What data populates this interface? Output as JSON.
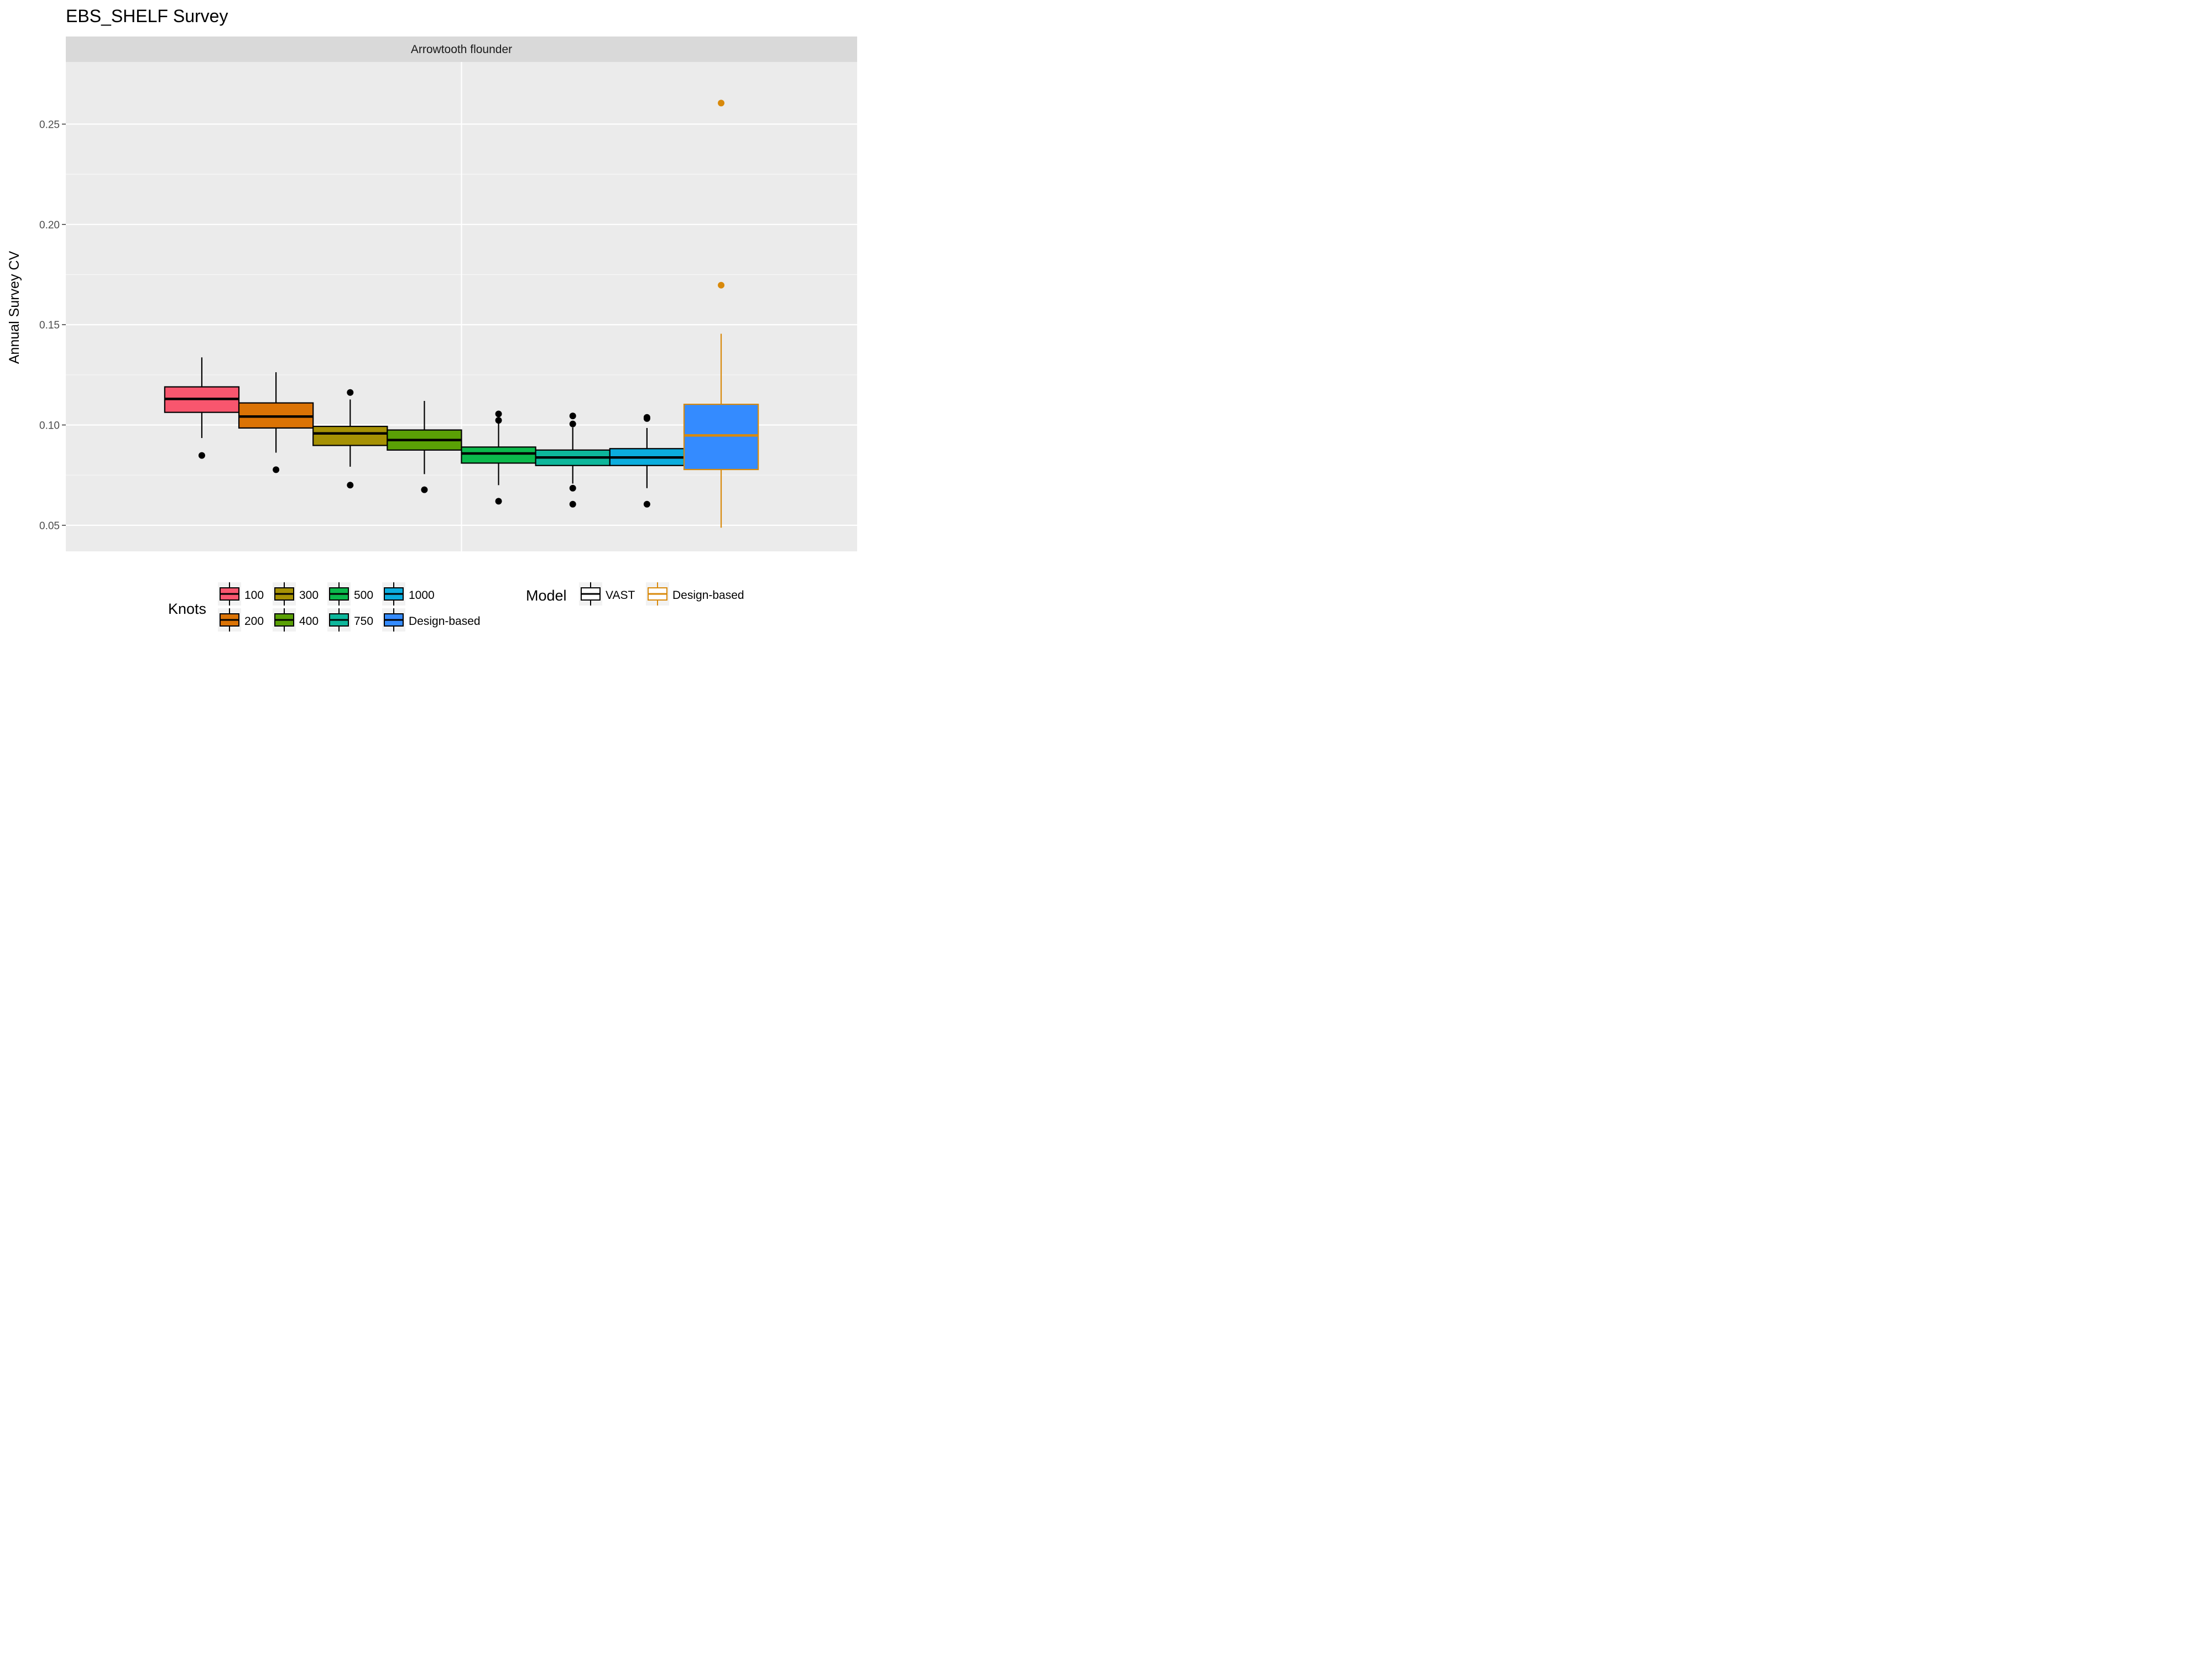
{
  "chart_data": {
    "type": "boxplot",
    "title": "EBS_SHELF Survey",
    "facet": "Arrowtooth flounder",
    "ylabel": "Annual Survey CV",
    "xlabel": "",
    "ylim": [
      0.037,
      0.281
    ],
    "y_ticks": [
      "0.05",
      "0.10",
      "0.15",
      "0.20",
      "0.25"
    ],
    "y_tick_values": [
      0.05,
      0.1,
      0.15,
      0.2,
      0.25
    ],
    "grid": true,
    "legend_position": "bottom",
    "boxes": [
      {
        "knots": "100",
        "model": "VAST",
        "fill": "#F8566E",
        "lower_whisker": 0.0935,
        "q1": 0.1063,
        "median": 0.113,
        "q3": 0.119,
        "upper_whisker": 0.1337,
        "outliers": [
          0.0848
        ]
      },
      {
        "knots": "200",
        "model": "VAST",
        "fill": "#DB7305",
        "lower_whisker": 0.0862,
        "q1": 0.0985,
        "median": 0.1042,
        "q3": 0.111,
        "upper_whisker": 0.1263,
        "outliers": [
          0.0777
        ]
      },
      {
        "knots": "300",
        "model": "VAST",
        "fill": "#A69104",
        "lower_whisker": 0.0792,
        "q1": 0.0898,
        "median": 0.0958,
        "q3": 0.0993,
        "upper_whisker": 0.1127,
        "outliers": [
          0.1162,
          0.07
        ]
      },
      {
        "knots": "400",
        "model": "VAST",
        "fill": "#5AA005",
        "lower_whisker": 0.0755,
        "q1": 0.0875,
        "median": 0.0925,
        "q3": 0.0975,
        "upper_whisker": 0.112,
        "outliers": [
          0.0677
        ]
      },
      {
        "knots": "500",
        "model": "VAST",
        "fill": "#0BB94C",
        "lower_whisker": 0.07,
        "q1": 0.081,
        "median": 0.0858,
        "q3": 0.089,
        "upper_whisker": 0.101,
        "outliers": [
          0.1055,
          0.1023,
          0.062
        ]
      },
      {
        "knots": "750",
        "model": "VAST",
        "fill": "#0DB79B",
        "lower_whisker": 0.0708,
        "q1": 0.0798,
        "median": 0.0838,
        "q3": 0.0875,
        "upper_whisker": 0.0988,
        "outliers": [
          0.1045,
          0.1005,
          0.0685,
          0.0605
        ]
      },
      {
        "knots": "1000",
        "model": "VAST",
        "fill": "#0BADDE",
        "lower_whisker": 0.0685,
        "q1": 0.0798,
        "median": 0.0838,
        "q3": 0.0882,
        "upper_whisker": 0.0985,
        "outliers": [
          0.1038,
          0.1032,
          0.0605
        ]
      },
      {
        "knots": "Design-based",
        "model": "Design-based",
        "fill": "#348BFF",
        "lower_whisker": 0.0488,
        "q1": 0.0778,
        "median": 0.0948,
        "q3": 0.1103,
        "upper_whisker": 0.1455,
        "outliers": [
          0.2605,
          0.1697
        ]
      }
    ],
    "legend": {
      "knots_title": "Knots",
      "knots_rows": [
        [
          {
            "label": "100",
            "fill": "#F8566E"
          },
          {
            "label": "300",
            "fill": "#A69104"
          },
          {
            "label": "500",
            "fill": "#0BB94C"
          },
          {
            "label": "1000",
            "fill": "#0BADDE"
          }
        ],
        [
          {
            "label": "200",
            "fill": "#DB7305"
          },
          {
            "label": "400",
            "fill": "#5AA005"
          },
          {
            "label": "750",
            "fill": "#0DB79B"
          },
          {
            "label": "Design-based",
            "fill": "#348BFF"
          }
        ]
      ],
      "model_title": "Model",
      "model_items": [
        {
          "label": "VAST",
          "color": "#000000"
        },
        {
          "label": "Design-based",
          "color": "#D8890B"
        }
      ]
    }
  }
}
